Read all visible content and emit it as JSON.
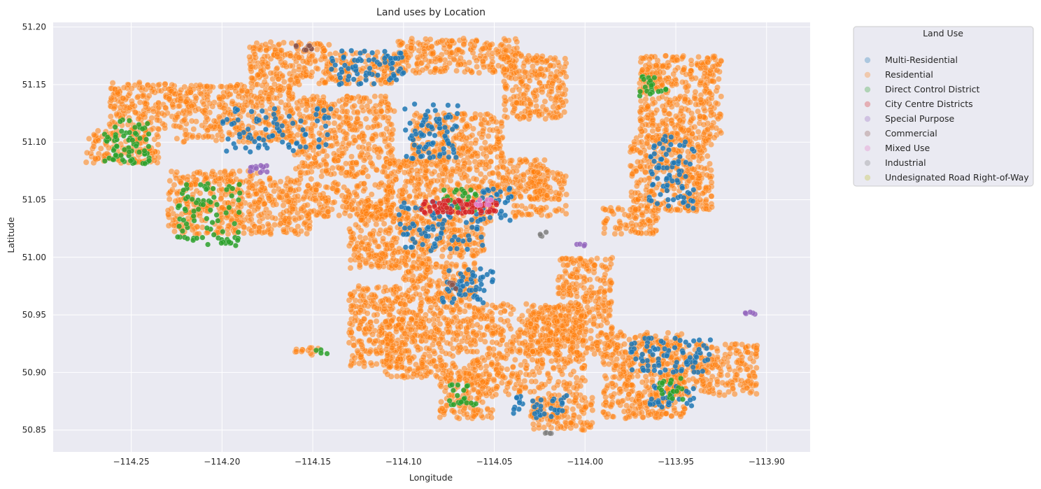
{
  "chart_data": {
    "type": "scatter",
    "title": "Land uses by Location",
    "xlabel": "Longitude",
    "ylabel": "Latitude",
    "xlim": [
      -114.293,
      -113.876
    ],
    "ylim": [
      50.831,
      51.204
    ],
    "x_ticks": [
      -114.25,
      -114.2,
      -114.15,
      -114.1,
      -114.05,
      -114.0,
      -113.95,
      -113.9
    ],
    "x_tick_labels": [
      "−114.25",
      "−114.20",
      "−114.15",
      "−114.10",
      "−114.05",
      "−114.00",
      "−113.95",
      "−113.90"
    ],
    "y_ticks": [
      50.85,
      50.9,
      50.95,
      51.0,
      51.05,
      51.1,
      51.15,
      51.2
    ],
    "y_tick_labels": [
      "50.85",
      "50.90",
      "50.95",
      "51.00",
      "51.05",
      "51.10",
      "51.15",
      "51.20"
    ],
    "grid": true,
    "background": "#eaeaf2",
    "legend": {
      "title": "Land Use",
      "placement": "outside-top-right",
      "entries": [
        "Multi-Residential",
        "Residential",
        "Direct Control District",
        "City Centre Districts",
        "Special Purpose",
        "Commercial",
        "Mixed Use",
        "Industrial",
        "Undesignated Road Right-of-Way"
      ],
      "colors": [
        "#1f77b4",
        "#ff7f0e",
        "#2ca02c",
        "#d62728",
        "#9467bd",
        "#8c564b",
        "#e377c2",
        "#7f7f7f",
        "#bcbd22"
      ]
    },
    "series": [
      {
        "name": "Residential",
        "color": "#ff7f0e",
        "regions": [
          {
            "lon": [
              -114.23,
              -114.18
            ],
            "lat": [
              51.02,
              51.075
            ]
          },
          {
            "lon": [
              -114.18,
              -114.15
            ],
            "lat": [
              51.02,
              51.07
            ]
          },
          {
            "lon": [
              -114.15,
              -114.105
            ],
            "lat": [
              51.035,
              51.065
            ]
          },
          {
            "lon": [
              -114.275,
              -114.235
            ],
            "lat": [
              51.082,
              51.11
            ]
          },
          {
            "lon": [
              -114.262,
              -114.225
            ],
            "lat": [
              51.11,
              51.152
            ]
          },
          {
            "lon": [
              -114.225,
              -114.16
            ],
            "lat": [
              51.1,
              51.15
            ]
          },
          {
            "lon": [
              -114.16,
              -114.105
            ],
            "lat": [
              51.07,
              51.14
            ]
          },
          {
            "lon": [
              -114.185,
              -114.14
            ],
            "lat": [
              51.15,
              51.187
            ]
          },
          {
            "lon": [
              -114.14,
              -114.105
            ],
            "lat": [
              51.15,
              51.178
            ]
          },
          {
            "lon": [
              -114.105,
              -114.035
            ],
            "lat": [
              51.16,
              51.19
            ]
          },
          {
            "lon": [
              -114.045,
              -114.01
            ],
            "lat": [
              51.12,
              51.175
            ]
          },
          {
            "lon": [
              -114.095,
              -114.045
            ],
            "lat": [
              51.085,
              51.125
            ]
          },
          {
            "lon": [
              -114.11,
              -114.02
            ],
            "lat": [
              51.05,
              51.085
            ]
          },
          {
            "lon": [
              -114.125,
              -114.05
            ],
            "lat": [
              51.03,
              51.05
            ]
          },
          {
            "lon": [
              -114.13,
              -114.085
            ],
            "lat": [
              50.99,
              51.03
            ]
          },
          {
            "lon": [
              -114.085,
              -114.055
            ],
            "lat": [
              51.0,
              51.03
            ]
          },
          {
            "lon": [
              -114.13,
              -114.1
            ],
            "lat": [
              50.905,
              50.975
            ]
          },
          {
            "lon": [
              -114.1,
              -114.06
            ],
            "lat": [
              50.945,
              50.995
            ]
          },
          {
            "lon": [
              -114.11,
              -114.06
            ],
            "lat": [
              50.895,
              50.945
            ]
          },
          {
            "lon": [
              -114.08,
              -114.05
            ],
            "lat": [
              50.86,
              50.9
            ]
          },
          {
            "lon": [
              -114.06,
              -114.0
            ],
            "lat": [
              50.88,
              50.96
            ]
          },
          {
            "lon": [
              -114.03,
              -113.985
            ],
            "lat": [
              50.915,
              50.96
            ]
          },
          {
            "lon": [
              -114.015,
              -113.985
            ],
            "lat": [
              50.96,
              51.0
            ]
          },
          {
            "lon": [
              -114.03,
              -113.995
            ],
            "lat": [
              50.85,
              50.88
            ]
          },
          {
            "lon": [
              -113.99,
              -113.945
            ],
            "lat": [
              50.86,
              50.935
            ]
          },
          {
            "lon": [
              -113.955,
              -113.905
            ],
            "lat": [
              50.88,
              50.925
            ]
          },
          {
            "lon": [
              -113.99,
              -113.96
            ],
            "lat": [
              51.02,
              51.045
            ]
          },
          {
            "lon": [
              -113.975,
              -113.93
            ],
            "lat": [
              51.04,
              51.105
            ]
          },
          {
            "lon": [
              -113.97,
              -113.925
            ],
            "lat": [
              51.1,
              51.175
            ]
          },
          {
            "lon": [
              -114.04,
              -114.01
            ],
            "lat": [
              51.035,
              51.045
            ]
          },
          {
            "lon": [
              -114.03,
              -114.01
            ],
            "lat": [
              51.05,
              51.075
            ]
          },
          {
            "lon": [
              -114.16,
              -114.145
            ],
            "lat": [
              50.915,
              50.922
            ]
          }
        ]
      },
      {
        "name": "Multi-Residential",
        "color": "#1f77b4",
        "regions": [
          {
            "lon": [
              -114.105,
              -114.055
            ],
            "lat": [
              51.005,
              51.05
            ]
          },
          {
            "lon": [
              -114.1,
              -114.07
            ],
            "lat": [
              51.085,
              51.135
            ]
          },
          {
            "lon": [
              -114.06,
              -114.04
            ],
            "lat": [
              51.03,
              51.06
            ]
          },
          {
            "lon": [
              -113.965,
              -113.94
            ],
            "lat": [
              51.04,
              51.105
            ]
          },
          {
            "lon": [
              -113.975,
              -113.93
            ],
            "lat": [
              50.9,
              50.93
            ]
          },
          {
            "lon": [
              -114.04,
              -114.01
            ],
            "lat": [
              50.86,
              50.88
            ]
          },
          {
            "lon": [
              -114.08,
              -114.05
            ],
            "lat": [
              50.96,
              50.99
            ]
          },
          {
            "lon": [
              -114.2,
              -114.14
            ],
            "lat": [
              51.09,
              51.13
            ]
          },
          {
            "lon": [
              -114.14,
              -114.1
            ],
            "lat": [
              51.15,
              51.18
            ]
          },
          {
            "lon": [
              -113.965,
              -113.94
            ],
            "lat": [
              50.87,
              50.89
            ]
          }
        ]
      },
      {
        "name": "Direct Control District",
        "color": "#2ca02c",
        "regions": [
          {
            "lon": [
              -114.265,
              -114.24
            ],
            "lat": [
              51.08,
              51.12
            ]
          },
          {
            "lon": [
              -114.225,
              -114.19
            ],
            "lat": [
              51.01,
              51.065
            ]
          },
          {
            "lon": [
              -114.08,
              -114.06
            ],
            "lat": [
              51.04,
              51.06
            ]
          },
          {
            "lon": [
              -113.97,
              -113.955
            ],
            "lat": [
              51.14,
              51.16
            ]
          },
          {
            "lon": [
              -114.075,
              -114.06
            ],
            "lat": [
              50.87,
              50.89
            ]
          },
          {
            "lon": [
              -114.15,
              -114.14
            ],
            "lat": [
              50.915,
              50.92
            ]
          },
          {
            "lon": [
              -113.96,
              -113.945
            ],
            "lat": [
              50.875,
              50.895
            ]
          }
        ]
      },
      {
        "name": "City Centre Districts",
        "color": "#d62728",
        "regions": [
          {
            "lon": [
              -114.09,
              -114.048
            ],
            "lat": [
              51.038,
              51.05
            ]
          }
        ]
      },
      {
        "name": "Special Purpose",
        "color": "#9467bd",
        "regions": [
          {
            "lon": [
              -114.185,
              -114.175
            ],
            "lat": [
              51.073,
              51.08
            ]
          },
          {
            "lon": [
              -113.912,
              -113.903
            ],
            "lat": [
              50.95,
              50.953
            ]
          },
          {
            "lon": [
              -114.005,
              -114.0
            ],
            "lat": [
              51.009,
              51.012
            ]
          }
        ]
      },
      {
        "name": "Commercial",
        "color": "#8c564b",
        "regions": [
          {
            "lon": [
              -114.075,
              -114.07
            ],
            "lat": [
              50.972,
              50.978
            ]
          },
          {
            "lon": [
              -114.16,
              -114.15
            ],
            "lat": [
              51.18,
              51.184
            ]
          }
        ]
      },
      {
        "name": "Mixed Use",
        "color": "#e377c2",
        "regions": [
          {
            "lon": [
              -114.06,
              -114.05
            ],
            "lat": [
              51.045,
              51.05
            ]
          }
        ]
      },
      {
        "name": "Industrial",
        "color": "#7f7f7f",
        "regions": [
          {
            "lon": [
              -114.025,
              -114.02
            ],
            "lat": [
              51.018,
              51.022
            ]
          },
          {
            "lon": [
              -114.022,
              -114.018
            ],
            "lat": [
              50.846,
              50.85
            ]
          }
        ]
      },
      {
        "name": "Undesignated Road Right-of-Way",
        "color": "#bcbd22",
        "regions": []
      }
    ]
  }
}
